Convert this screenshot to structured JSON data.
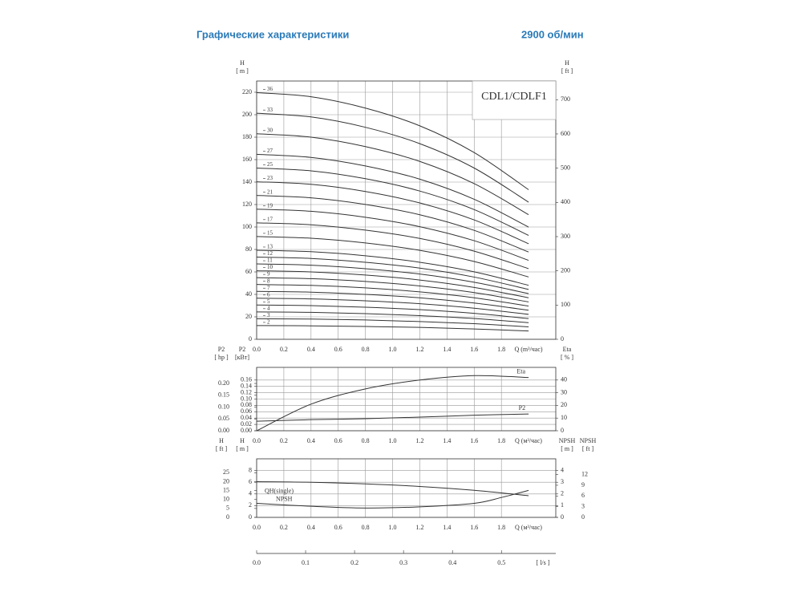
{
  "header": {
    "title": "Графические характеристики",
    "speed": "2900 об/мин"
  },
  "chart_data": [
    {
      "type": "line",
      "model": "CDL1/CDLF1",
      "color": "#333333",
      "grid": true,
      "x_label": "Q (m³/час)",
      "y_label": "H",
      "y_unit": "[ m ]",
      "y2_label": "H",
      "y2_unit": "[ ft ]",
      "xlim": [
        0,
        2.2
      ],
      "xticks": [
        {
          "value": 0,
          "label": "0.0"
        },
        0.2,
        0.4,
        0.6,
        0.8,
        {
          "value": 1,
          "label": "1.0"
        },
        1.2,
        1.4,
        1.6,
        1.8
      ],
      "ylim": [
        0,
        230
      ],
      "yticks": [
        0,
        20,
        40,
        60,
        80,
        100,
        120,
        140,
        160,
        180,
        200,
        220
      ],
      "y2lim": [
        0,
        754.6
      ],
      "y2ticks": [
        0,
        100,
        200,
        300,
        400,
        500,
        600,
        700
      ],
      "x": [
        0,
        0.4,
        0.8,
        1.2,
        1.6,
        2.0
      ],
      "series": [
        {
          "name": "36",
          "values": [
            219.6,
            216,
            205.9,
            190.1,
            166.3,
            133.2
          ]
        },
        {
          "name": "33",
          "values": [
            201.3,
            198,
            188.8,
            174.2,
            152.5,
            122.1
          ]
        },
        {
          "name": "30",
          "values": [
            183,
            180,
            171.6,
            158.4,
            138.6,
            111
          ]
        },
        {
          "name": "27",
          "values": [
            164.7,
            162,
            154.4,
            142.6,
            124.7,
            99.9
          ]
        },
        {
          "name": "25",
          "values": [
            152.5,
            150,
            143,
            132,
            115.5,
            92.5
          ]
        },
        {
          "name": "23",
          "values": [
            140.3,
            138,
            131.6,
            121.4,
            106.3,
            85.1
          ]
        },
        {
          "name": "21",
          "values": [
            128.1,
            126,
            120.1,
            110.9,
            97,
            77.7
          ]
        },
        {
          "name": "19",
          "values": [
            115.9,
            114,
            108.7,
            100.3,
            87.8,
            70.3
          ]
        },
        {
          "name": "17",
          "values": [
            103.7,
            102,
            97.2,
            89.8,
            78.5,
            62.9
          ]
        },
        {
          "name": "15",
          "values": [
            91.5,
            90,
            85.8,
            79.2,
            69.3,
            55.5
          ]
        },
        {
          "name": "13",
          "values": [
            79.3,
            78,
            74.4,
            68.6,
            60.1,
            48.1
          ]
        },
        {
          "name": "12",
          "values": [
            73.2,
            72,
            68.6,
            63.4,
            55.4,
            44.4
          ]
        },
        {
          "name": "11",
          "values": [
            67.1,
            66,
            62.9,
            58.1,
            50.8,
            40.7
          ]
        },
        {
          "name": "10",
          "values": [
            61,
            60,
            57.2,
            52.8,
            46.2,
            37
          ]
        },
        {
          "name": "9",
          "values": [
            54.9,
            54,
            51.5,
            47.5,
            41.6,
            33.3
          ]
        },
        {
          "name": "8",
          "values": [
            48.8,
            48,
            45.8,
            42.2,
            37,
            29.6
          ]
        },
        {
          "name": "7",
          "values": [
            42.7,
            42,
            40,
            37,
            32.3,
            25.9
          ]
        },
        {
          "name": "6",
          "values": [
            36.6,
            36,
            34.3,
            31.7,
            27.7,
            22.2
          ]
        },
        {
          "name": "5",
          "values": [
            30.5,
            30,
            28.6,
            26.4,
            23.1,
            18.5
          ]
        },
        {
          "name": "4",
          "values": [
            24.4,
            24,
            22.9,
            21.1,
            18.5,
            14.8
          ]
        },
        {
          "name": "3",
          "values": [
            18.3,
            18,
            17.2,
            15.8,
            13.9,
            11.1
          ]
        },
        {
          "name": "2",
          "values": [
            12.2,
            12,
            11.4,
            10.6,
            9.2,
            7.4
          ]
        }
      ]
    },
    {
      "type": "line",
      "color": "#333333",
      "grid": true,
      "x_label": "Q (м³/час)",
      "y_label": "P2",
      "y_unit": "[кВт]",
      "y3_label": "P2",
      "y3_unit": "[ hp ]",
      "y2_label": "Eta",
      "y2_unit": "[ % ]",
      "xlim": [
        0,
        2.2
      ],
      "xticks": [
        {
          "value": 0,
          "label": "0.0"
        },
        0.2,
        0.4,
        0.6,
        0.8,
        {
          "value": 1,
          "label": "1.0"
        },
        1.2,
        1.4,
        1.6,
        1.8
      ],
      "ylim": [
        0,
        0.2
      ],
      "yticks": [
        {
          "value": 0,
          "label": "0.00"
        },
        0.02,
        0.04,
        0.06,
        0.08,
        {
          "value": 0.1,
          "label": "0.10"
        },
        0.12,
        0.14,
        0.16
      ],
      "y3lim": [
        0,
        0.268
      ],
      "y3ticks": [
        {
          "value": 0,
          "label": "0.00"
        },
        0.05,
        {
          "value": 0.1,
          "label": "0.10"
        },
        0.15,
        {
          "value": 0.2,
          "label": "0.20"
        }
      ],
      "y2lim": [
        0,
        50
      ],
      "y2ticks": [
        0,
        10,
        20,
        30,
        40
      ],
      "x": [
        0,
        0.4,
        0.8,
        1.2,
        1.6,
        2.0
      ],
      "series": [
        {
          "name": "Eta",
          "axis": "y2",
          "values": [
            0,
            21,
            33,
            40,
            43.5,
            42
          ]
        },
        {
          "name": "P2",
          "values": [
            0.03,
            0.035,
            0.038,
            0.043,
            0.049,
            0.053
          ]
        }
      ]
    },
    {
      "type": "line",
      "color": "#333333",
      "grid": true,
      "x_label": "Q (м³/час)",
      "y_label": "H",
      "y_unit": "[ m ]",
      "y3_label": "H",
      "y3_unit": "[ ft ]",
      "y2_label": "NPSH",
      "y2_unit": "[ m ]",
      "y4_label": "NPSH",
      "y4_unit": "[ ft ]",
      "xlim": [
        0,
        2.2
      ],
      "xticks": [
        {
          "value": 0,
          "label": "0.0"
        },
        0.2,
        0.4,
        0.6,
        0.8,
        {
          "value": 1,
          "label": "1.0"
        },
        1.2,
        1.4,
        1.6,
        1.8
      ],
      "ylim": [
        0,
        10
      ],
      "yticks": [
        0,
        2,
        4,
        6,
        8
      ],
      "y3lim": [
        0,
        32.8
      ],
      "y3ticks": [
        0,
        5,
        10,
        15,
        20,
        25
      ],
      "y2lim": [
        0,
        5
      ],
      "y2ticks": [
        0,
        1,
        2,
        3,
        4
      ],
      "y4lim": [
        0,
        16.4
      ],
      "y4ticks": [
        0,
        3,
        6,
        9,
        12
      ],
      "series": [
        {
          "name": "QH(single)",
          "x": [
            0,
            0.4,
            0.8,
            1.2,
            1.6,
            2.0
          ],
          "values": [
            6.1,
            6.0,
            5.72,
            5.28,
            4.62,
            3.7
          ]
        },
        {
          "name": "NPSH",
          "axis": "y2",
          "x": [
            0,
            0.4,
            0.8,
            1.2,
            1.6,
            1.8,
            2.0
          ],
          "values": [
            1.2,
            0.95,
            0.8,
            0.9,
            1.2,
            1.7,
            2.3
          ]
        }
      ],
      "x2_label": "[ l/s ]",
      "x2lim": [
        0,
        0.611
      ],
      "x2ticks": [
        {
          "value": 0,
          "label": "0.0"
        },
        0.1,
        0.2,
        0.3,
        0.4,
        0.5
      ]
    }
  ]
}
